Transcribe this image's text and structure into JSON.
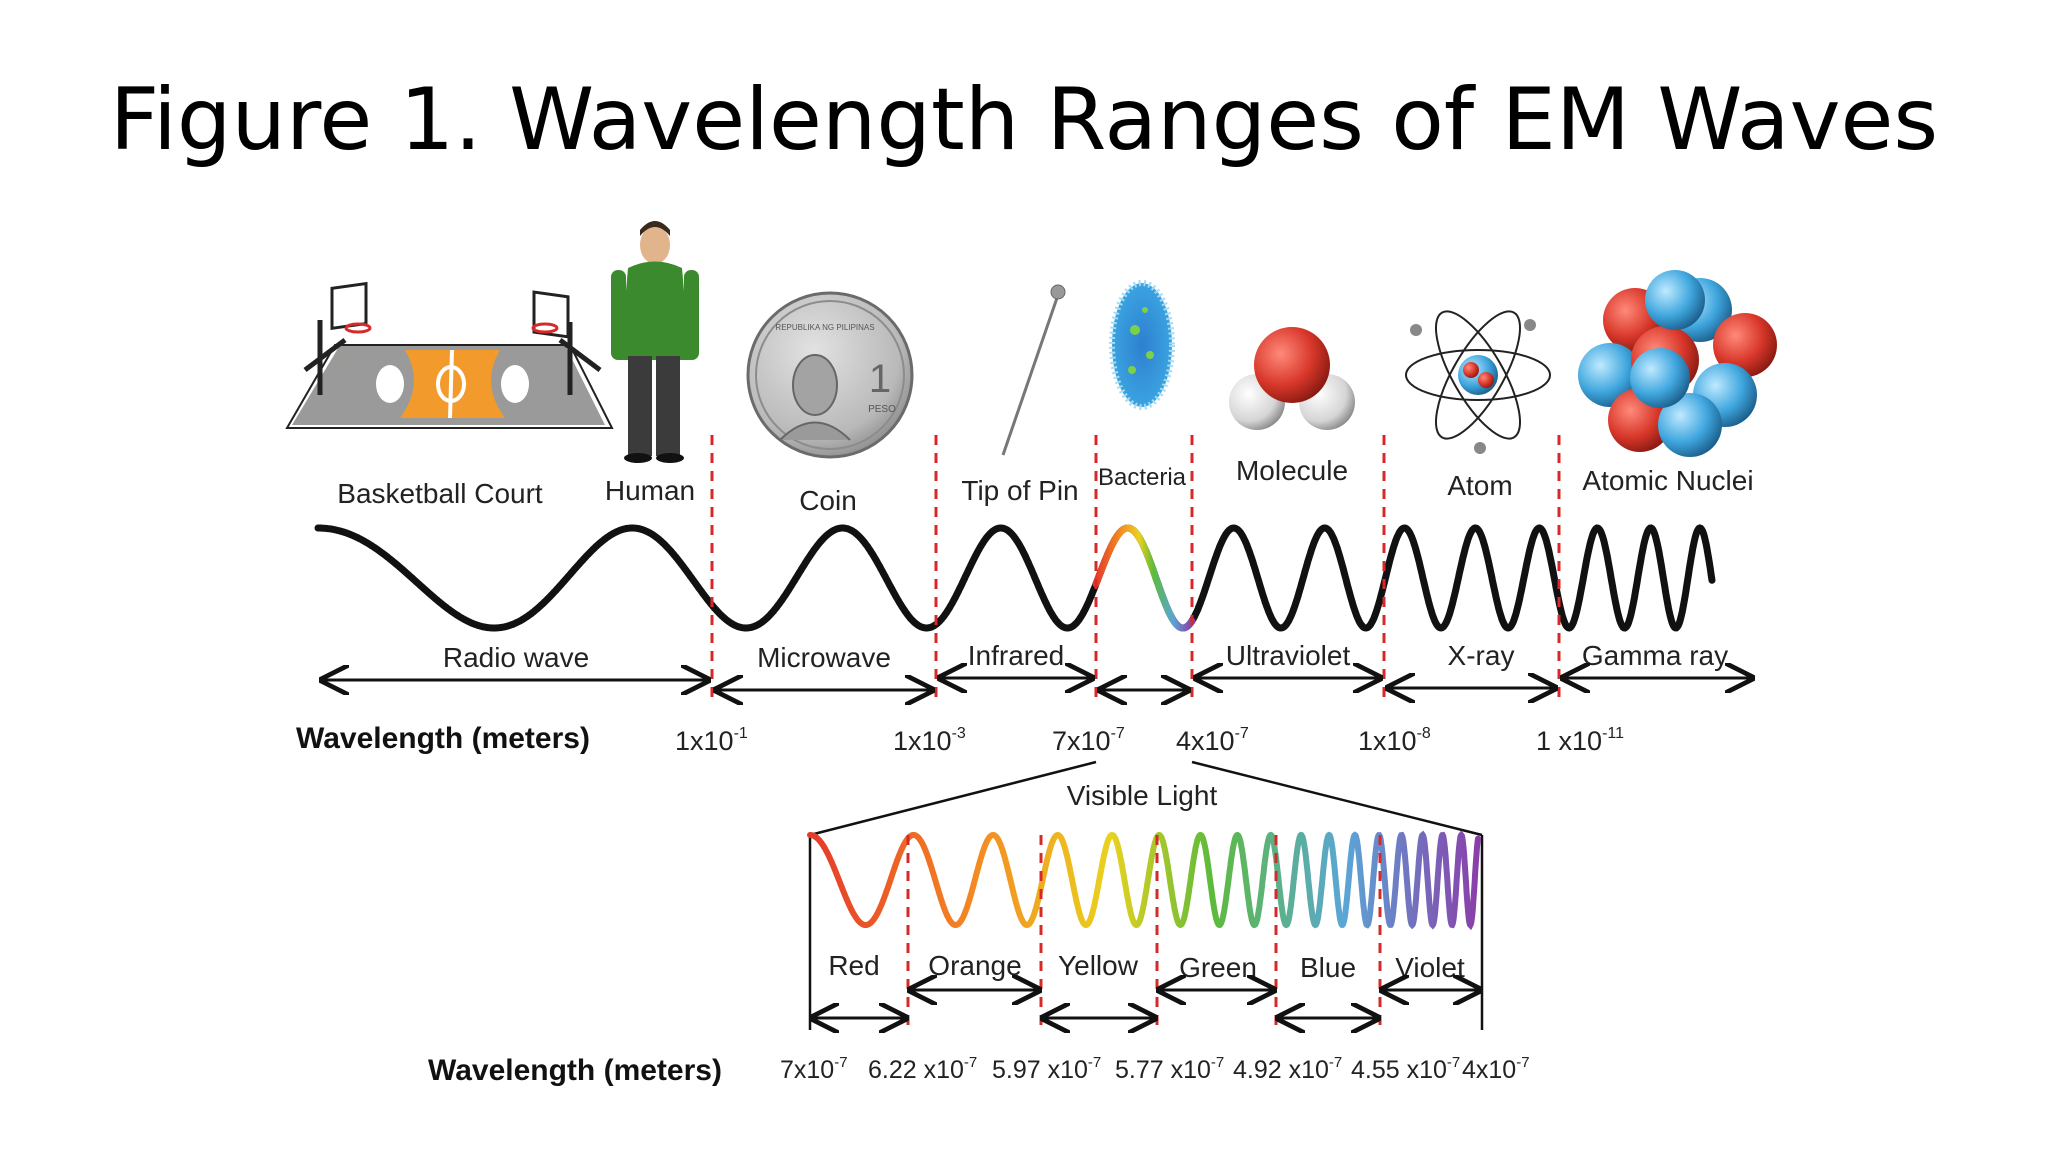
{
  "title": "Figure 1. Wavelength Ranges of EM Waves",
  "objects": {
    "basketball_court": "Basketball Court",
    "human": "Human",
    "coin": "Coin",
    "coin_text_top": "REPUBLIKA NG PILIPINAS",
    "coin_value": "1",
    "coin_unit": "PESO",
    "tip_of_pin": "Tip of Pin",
    "bacteria": "Bacteria",
    "molecule": "Molecule",
    "atom": "Atom",
    "atomic_nuclei": "Atomic Nuclei"
  },
  "bands": {
    "radio": "Radio wave",
    "microwave": "Microwave",
    "infrared": "Infrared",
    "ultraviolet": "Ultraviolet",
    "xray": "X-ray",
    "gamma": "Gamma ray"
  },
  "wavelength_label": "Wavelength (meters)",
  "boundaries": [
    {
      "base": "1x10",
      "exp": "-1"
    },
    {
      "base": "1x10",
      "exp": "-3"
    },
    {
      "base": "7x10",
      "exp": "-7"
    },
    {
      "base": "4x10",
      "exp": "-7"
    },
    {
      "base": "1x10",
      "exp": "-8"
    },
    {
      "base": "1 x10",
      "exp": "-11"
    }
  ],
  "visible_light": "Visible Light",
  "colors": {
    "red": "Red",
    "orange": "Orange",
    "yellow": "Yellow",
    "green": "Green",
    "blue": "Blue",
    "violet": "Violet"
  },
  "visible_wavelength_label": "Wavelength (meters)",
  "visible_boundaries": [
    {
      "base": "7x10",
      "exp": "-7"
    },
    {
      "base": "6.22 x10",
      "exp": "-7"
    },
    {
      "base": "5.97 x10",
      "exp": "-7"
    },
    {
      "base": "5.77 x10",
      "exp": "-7"
    },
    {
      "base": "4.92 x10",
      "exp": "-7"
    },
    {
      "base": "4.55 x10",
      "exp": "-7"
    },
    {
      "base": "4x10",
      "exp": "-7"
    }
  ],
  "style_colors": {
    "divider": "#d62a2a",
    "court_orange": "#f39a2c",
    "shirt_green": "#3c8a2e",
    "red": "#e53a2a",
    "orange": "#f48a22",
    "yellow": "#e9d21e",
    "green": "#5dbb3a",
    "blue": "#5aa6d6",
    "violet": "#8a3fa8"
  }
}
